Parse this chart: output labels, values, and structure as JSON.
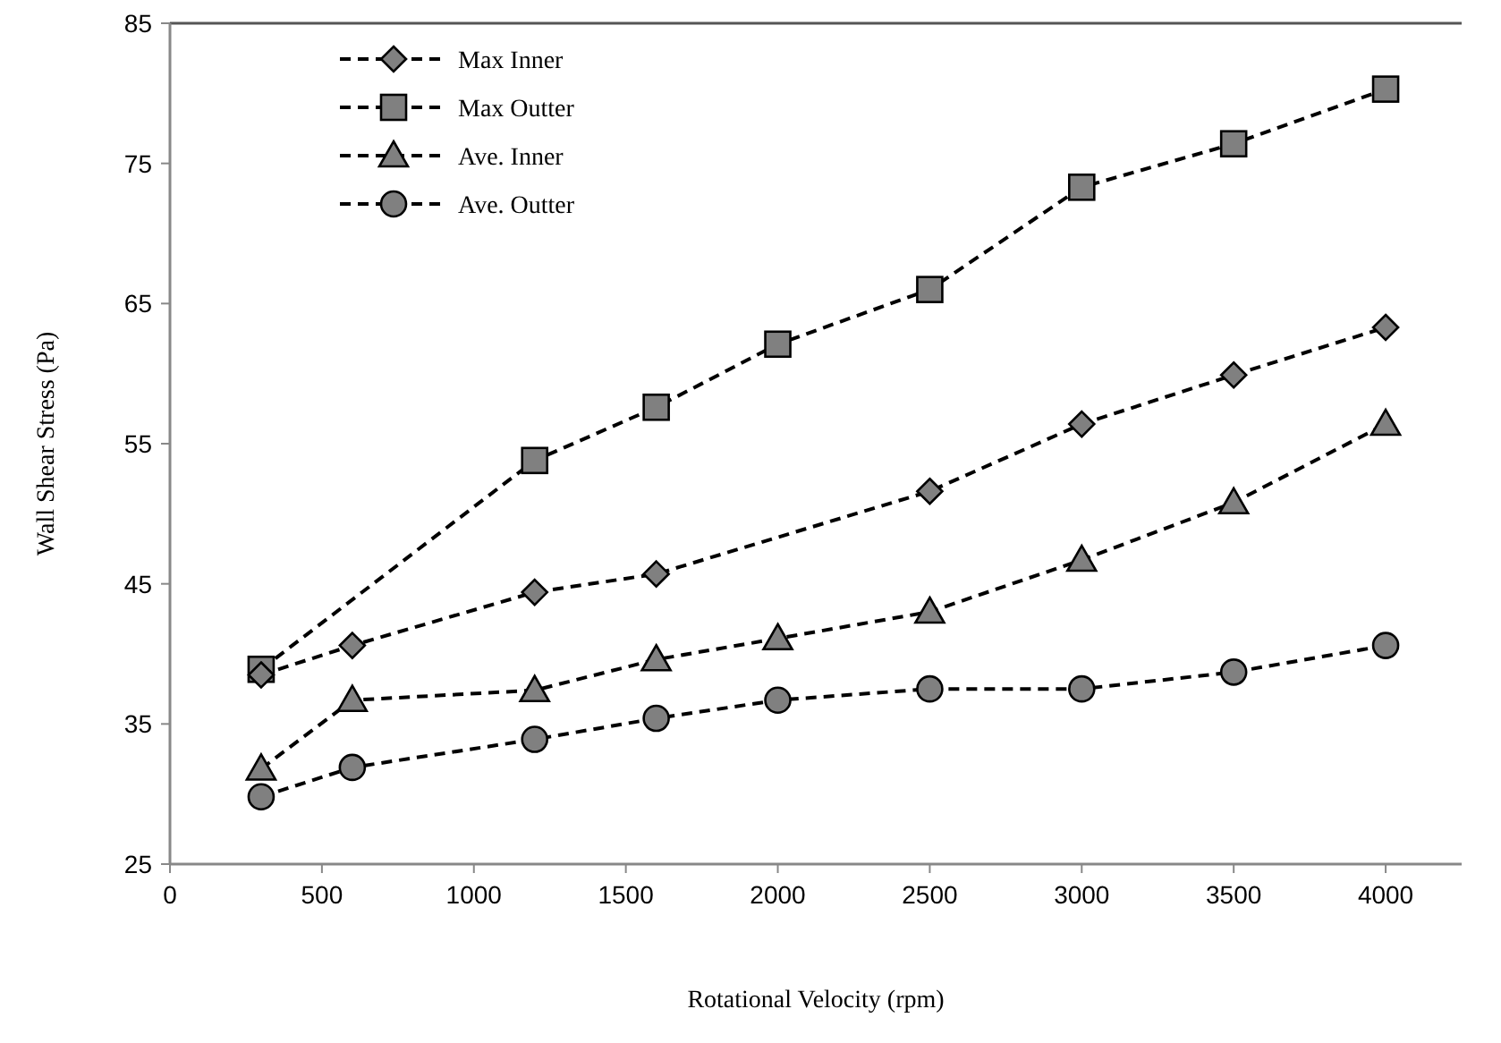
{
  "chart_data": {
    "type": "line",
    "xlabel": "Rotational Velocity (rpm)",
    "ylabel": "Wall Shear Stress (Pa)",
    "x": [
      300,
      600,
      1200,
      1600,
      2000,
      2500,
      3000,
      3500,
      4000
    ],
    "series": [
      {
        "name": "Max Inner",
        "color": "#808080",
        "marker": "diamond",
        "x": [
          300,
          600,
          1200,
          1600,
          2500,
          3000,
          3500,
          4000
        ],
        "values": [
          38.5,
          40.6,
          44.4,
          45.7,
          51.6,
          56.4,
          59.9,
          63.3
        ]
      },
      {
        "name": "Max Outter",
        "color": "#808080",
        "marker": "square",
        "values": [
          38.9,
          53.8,
          57.6,
          62.1,
          66.0,
          73.3,
          76.4,
          80.3
        ],
        "x": [
          300,
          1200,
          1600,
          2000,
          2500,
          3000,
          3500,
          4000
        ]
      },
      {
        "name": "Ave. Inner",
        "color": "#808080",
        "marker": "triangle",
        "values": [
          31.8,
          36.7,
          37.4,
          39.6,
          41.1,
          43.0,
          46.7,
          50.8,
          56.4
        ]
      },
      {
        "name": "Ave. Outter",
        "color": "#808080",
        "marker": "circle",
        "values": [
          29.8,
          31.9,
          33.9,
          35.4,
          36.7,
          37.5,
          37.5,
          38.7,
          40.6
        ]
      }
    ],
    "line_style": "dashed",
    "xlim": [
      0,
      4250
    ],
    "xticks": [
      0,
      500,
      1000,
      1500,
      2000,
      2500,
      3000,
      3500,
      4000
    ],
    "ylim": [
      25,
      85
    ],
    "yticks": [
      25,
      35,
      45,
      55,
      65,
      75,
      85
    ],
    "grid": false,
    "legend": "top left"
  }
}
